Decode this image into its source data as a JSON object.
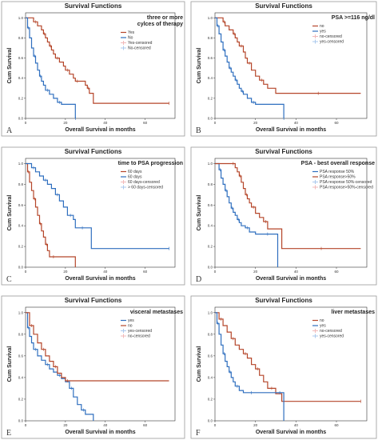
{
  "colors": {
    "red": "#b5462a",
    "blue": "#2f6fbf",
    "pink": "#f1b8b8",
    "lightblue": "#aac8ec"
  },
  "chart_data": [
    {
      "type": "line",
      "letter": "A",
      "title": "Survival Functions",
      "xlabel": "Overall Survival in months",
      "ylabel": "Cum Survival",
      "xlim": [
        0,
        75
      ],
      "ylim": [
        0,
        1.05
      ],
      "xticks": [
        0,
        20,
        40,
        60
      ],
      "yticks": [
        0.0,
        0.2,
        0.4,
        0.6,
        0.8,
        1.0
      ],
      "xtick_labels": [
        "0",
        "20",
        "40",
        "60"
      ],
      "ytick_labels": [
        "0.0",
        "0.2",
        "0.4",
        "0.6",
        "0.8",
        "1.0"
      ],
      "legend_title": [
        "three or more",
        "cylces of therapy"
      ],
      "legend_items": [
        {
          "label": "Yes",
          "color": "#b5462a",
          "kind": "line"
        },
        {
          "label": "No",
          "color": "#2f6fbf",
          "kind": "line"
        },
        {
          "label": "Yes-censored",
          "color": "#f1b8b8",
          "kind": "cross"
        },
        {
          "label": "No-censored",
          "color": "#aac8ec",
          "kind": "cross"
        }
      ],
      "series": [
        {
          "name": "Yes",
          "color": "#b5462a",
          "x": [
            0,
            4,
            6,
            8,
            9,
            10,
            11,
            12,
            13,
            14,
            15,
            17,
            19,
            20,
            22,
            24,
            25,
            27,
            30,
            31,
            32,
            34,
            72
          ],
          "y": [
            1.0,
            0.96,
            0.92,
            0.88,
            0.84,
            0.8,
            0.76,
            0.72,
            0.68,
            0.64,
            0.6,
            0.56,
            0.52,
            0.48,
            0.44,
            0.4,
            0.37,
            0.37,
            0.33,
            0.3,
            0.25,
            0.15,
            0.15
          ]
        },
        {
          "name": "No",
          "color": "#2f6fbf",
          "x": [
            0,
            1,
            2,
            3,
            4,
            5,
            6,
            7,
            8,
            9,
            10,
            12,
            14,
            16,
            18,
            24,
            25
          ],
          "y": [
            1.0,
            0.9,
            0.8,
            0.7,
            0.62,
            0.55,
            0.48,
            0.42,
            0.37,
            0.33,
            0.28,
            0.24,
            0.2,
            0.16,
            0.14,
            0.14,
            0.0
          ]
        }
      ]
    },
    {
      "type": "line",
      "letter": "B",
      "title": "Survival Functions",
      "xlabel": "Overall Survival in months",
      "ylabel": "Cum Survival",
      "xlim": [
        0,
        75
      ],
      "ylim": [
        0,
        1.05
      ],
      "xticks": [
        0,
        20,
        40,
        60
      ],
      "yticks": [
        0.0,
        0.2,
        0.4,
        0.6,
        0.8,
        1.0
      ],
      "xtick_labels": [
        "0",
        "20",
        "40",
        "60"
      ],
      "ytick_labels": [
        "0.0",
        "0.2",
        "0.4",
        "0.6",
        "0.8",
        "1.0"
      ],
      "legend_title": [
        "PSA >=116 ng/dl"
      ],
      "legend_items": [
        {
          "label": "no",
          "color": "#b5462a",
          "kind": "line"
        },
        {
          "label": "yes",
          "color": "#2f6fbf",
          "kind": "line"
        },
        {
          "label": "no-censored",
          "color": "#f1b8b8",
          "kind": "cross"
        },
        {
          "label": "yes-censored",
          "color": "#aac8ec",
          "kind": "cross"
        }
      ],
      "series": [
        {
          "name": "no",
          "color": "#b5462a",
          "x": [
            0,
            4,
            5,
            7,
            9,
            10,
            11,
            12,
            14,
            15,
            16,
            18,
            20,
            22,
            24,
            26,
            30,
            72
          ],
          "y": [
            1.0,
            0.96,
            0.92,
            0.88,
            0.84,
            0.8,
            0.76,
            0.72,
            0.66,
            0.6,
            0.55,
            0.48,
            0.42,
            0.38,
            0.34,
            0.3,
            0.25,
            0.25
          ]
        },
        {
          "name": "yes",
          "color": "#2f6fbf",
          "x": [
            0,
            1,
            2,
            3,
            4,
            5,
            6,
            7,
            8,
            9,
            10,
            11,
            12,
            13,
            14,
            16,
            18,
            20,
            24,
            34
          ],
          "y": [
            1.0,
            0.92,
            0.84,
            0.76,
            0.68,
            0.62,
            0.56,
            0.5,
            0.46,
            0.42,
            0.38,
            0.34,
            0.3,
            0.27,
            0.24,
            0.2,
            0.16,
            0.14,
            0.14,
            0.0
          ]
        }
      ]
    },
    {
      "type": "line",
      "letter": "C",
      "title": "Survival Functions",
      "xlabel": "Overall Survival in months",
      "ylabel": "Cum Survival",
      "xlim": [
        0,
        75
      ],
      "ylim": [
        0,
        1.05
      ],
      "xticks": [
        0,
        20,
        40,
        60
      ],
      "yticks": [
        0.0,
        0.2,
        0.4,
        0.6,
        0.8,
        1.0
      ],
      "xtick_labels": [
        "0",
        "20",
        "40",
        "60"
      ],
      "ytick_labels": [
        "0.0",
        "0.2",
        "0.4",
        "0.6",
        "0.8",
        "1.0"
      ],
      "legend_title": [
        "time to PSA progression"
      ],
      "legend_items": [
        {
          "label": "60 days",
          "color": "#b5462a",
          "kind": "line"
        },
        {
          "label": "60 days",
          "color": "#2f6fbf",
          "kind": "line"
        },
        {
          "label": "60 days-censored",
          "color": "#f1b8b8",
          "kind": "cross"
        },
        {
          "label": "> 60 days-censored",
          "color": "#aac8ec",
          "kind": "cross"
        }
      ],
      "series": [
        {
          "name": "60 days",
          "color": "#b5462a",
          "x": [
            0,
            1,
            2,
            3,
            4,
            5,
            6,
            7,
            8,
            9,
            10,
            11,
            12,
            13,
            15,
            25
          ],
          "y": [
            1.0,
            0.92,
            0.82,
            0.74,
            0.66,
            0.58,
            0.5,
            0.42,
            0.35,
            0.29,
            0.22,
            0.16,
            0.1,
            0.1,
            0.1,
            0.0
          ]
        },
        {
          "name": "60 days",
          "color": "#2f6fbf",
          "x": [
            0,
            3,
            5,
            7,
            9,
            11,
            13,
            15,
            17,
            19,
            21,
            24,
            25,
            27,
            30,
            33,
            72
          ],
          "y": [
            1.0,
            0.96,
            0.92,
            0.88,
            0.84,
            0.8,
            0.76,
            0.7,
            0.64,
            0.58,
            0.5,
            0.46,
            0.38,
            0.38,
            0.38,
            0.18,
            0.18
          ]
        }
      ]
    },
    {
      "type": "line",
      "letter": "D",
      "title": "Survival Functions",
      "xlabel": "Overall Survival in months",
      "ylabel": "Cum Survival",
      "xlim": [
        0,
        75
      ],
      "ylim": [
        0,
        1.05
      ],
      "xticks": [
        0,
        20,
        40,
        60
      ],
      "yticks": [
        0.0,
        0.2,
        0.4,
        0.6,
        0.8,
        1.0
      ],
      "xtick_labels": [
        "0",
        "20",
        "40",
        "60"
      ],
      "ytick_labels": [
        "0.0",
        "0.2",
        "0.4",
        "0.6",
        "0.8",
        "1.0"
      ],
      "legend_title": [
        "PSA  - best overall response"
      ],
      "legend_items": [
        {
          "label": "PSA response 50%",
          "color": "#2f6fbf",
          "kind": "line"
        },
        {
          "label": "PSA response>50%",
          "color": "#b5462a",
          "kind": "line"
        },
        {
          "label": "PSA response 50%-censored",
          "color": "#aac8ec",
          "kind": "cross"
        },
        {
          "label": "PSA response>50%-censored",
          "color": "#f1b8b8",
          "kind": "cross"
        }
      ],
      "series": [
        {
          "name": "PSA response 50%",
          "color": "#2f6fbf",
          "x": [
            0,
            2,
            3,
            4,
            5,
            6,
            7,
            8,
            9,
            10,
            11,
            12,
            13,
            15,
            17,
            20,
            24,
            28,
            31
          ],
          "y": [
            1.0,
            0.94,
            0.86,
            0.8,
            0.74,
            0.68,
            0.62,
            0.57,
            0.53,
            0.5,
            0.46,
            0.43,
            0.4,
            0.38,
            0.34,
            0.32,
            0.32,
            0.32,
            0.0
          ]
        },
        {
          "name": "PSA response>50%",
          "color": "#b5462a",
          "x": [
            0,
            8,
            10,
            11,
            12,
            13,
            14,
            15,
            16,
            17,
            18,
            20,
            22,
            24,
            26,
            30,
            33,
            72
          ],
          "y": [
            1.0,
            1.0,
            0.96,
            0.92,
            0.88,
            0.82,
            0.76,
            0.7,
            0.66,
            0.62,
            0.58,
            0.52,
            0.48,
            0.44,
            0.37,
            0.37,
            0.18,
            0.18
          ]
        }
      ]
    },
    {
      "type": "line",
      "letter": "E",
      "title": "Survival Functions",
      "xlabel": "Overall Survival in months",
      "ylabel": "Cum Survival",
      "xlim": [
        0,
        75
      ],
      "ylim": [
        0,
        1.05
      ],
      "xticks": [
        0,
        20,
        40,
        60
      ],
      "yticks": [
        0.0,
        0.2,
        0.4,
        0.6,
        0.8,
        1.0
      ],
      "xtick_labels": [
        "0",
        "20",
        "40",
        "60"
      ],
      "ytick_labels": [
        "0.0",
        "0.2",
        "0.4",
        "0.6",
        "0.8",
        "1.0"
      ],
      "legend_title": [
        "visceral metastases"
      ],
      "legend_items": [
        {
          "label": "yes",
          "color": "#2f6fbf",
          "kind": "line"
        },
        {
          "label": "no",
          "color": "#b5462a",
          "kind": "line"
        },
        {
          "label": "yes-censored",
          "color": "#aac8ec",
          "kind": "cross"
        },
        {
          "label": "no-censored",
          "color": "#f1b8b8",
          "kind": "cross"
        }
      ],
      "series": [
        {
          "name": "yes",
          "color": "#2f6fbf",
          "x": [
            0,
            1,
            2,
            3,
            4,
            6,
            8,
            10,
            12,
            14,
            16,
            18,
            20,
            22,
            24,
            26,
            28,
            30,
            34
          ],
          "y": [
            1.0,
            0.86,
            0.78,
            0.72,
            0.66,
            0.6,
            0.56,
            0.52,
            0.48,
            0.45,
            0.42,
            0.39,
            0.36,
            0.3,
            0.22,
            0.15,
            0.1,
            0.06,
            0.0
          ]
        },
        {
          "name": "no",
          "color": "#b5462a",
          "x": [
            0,
            2,
            4,
            6,
            8,
            10,
            12,
            14,
            16,
            18,
            20,
            22,
            72
          ],
          "y": [
            1.0,
            0.88,
            0.8,
            0.72,
            0.66,
            0.6,
            0.55,
            0.5,
            0.44,
            0.4,
            0.37,
            0.37,
            0.37
          ]
        }
      ]
    },
    {
      "type": "line",
      "letter": "F",
      "title": "Survival Functions",
      "xlabel": "Overall Survival in months",
      "ylabel": "Cum Survival",
      "xlim": [
        0,
        75
      ],
      "ylim": [
        0,
        1.05
      ],
      "xticks": [
        0,
        20,
        40,
        60
      ],
      "yticks": [
        0.0,
        0.2,
        0.4,
        0.6,
        0.8,
        1.0
      ],
      "xtick_labels": [
        "0",
        "20",
        "40",
        "60"
      ],
      "ytick_labels": [
        "0.0",
        "0.2",
        "0.4",
        "0.6",
        "0.8",
        "1.0"
      ],
      "legend_title": [
        "liver metastases"
      ],
      "legend_items": [
        {
          "label": "no",
          "color": "#b5462a",
          "kind": "line"
        },
        {
          "label": "yes",
          "color": "#2f6fbf",
          "kind": "line"
        },
        {
          "label": "no-censored",
          "color": "#f1b8b8",
          "kind": "cross"
        },
        {
          "label": "yes-censored",
          "color": "#aac8ec",
          "kind": "cross"
        }
      ],
      "series": [
        {
          "name": "no",
          "color": "#b5462a",
          "x": [
            0,
            2,
            4,
            6,
            8,
            10,
            12,
            14,
            16,
            18,
            20,
            22,
            24,
            26,
            30,
            33,
            72
          ],
          "y": [
            1.0,
            0.94,
            0.88,
            0.82,
            0.76,
            0.7,
            0.66,
            0.62,
            0.58,
            0.52,
            0.48,
            0.42,
            0.36,
            0.3,
            0.25,
            0.18,
            0.18
          ]
        },
        {
          "name": "yes",
          "color": "#2f6fbf",
          "x": [
            0,
            1,
            2,
            3,
            4,
            5,
            6,
            7,
            8,
            9,
            10,
            12,
            14,
            16,
            20,
            24,
            30,
            34
          ],
          "y": [
            1.0,
            0.9,
            0.8,
            0.7,
            0.62,
            0.55,
            0.5,
            0.45,
            0.4,
            0.36,
            0.32,
            0.28,
            0.26,
            0.26,
            0.26,
            0.26,
            0.26,
            0.0
          ]
        }
      ]
    }
  ]
}
